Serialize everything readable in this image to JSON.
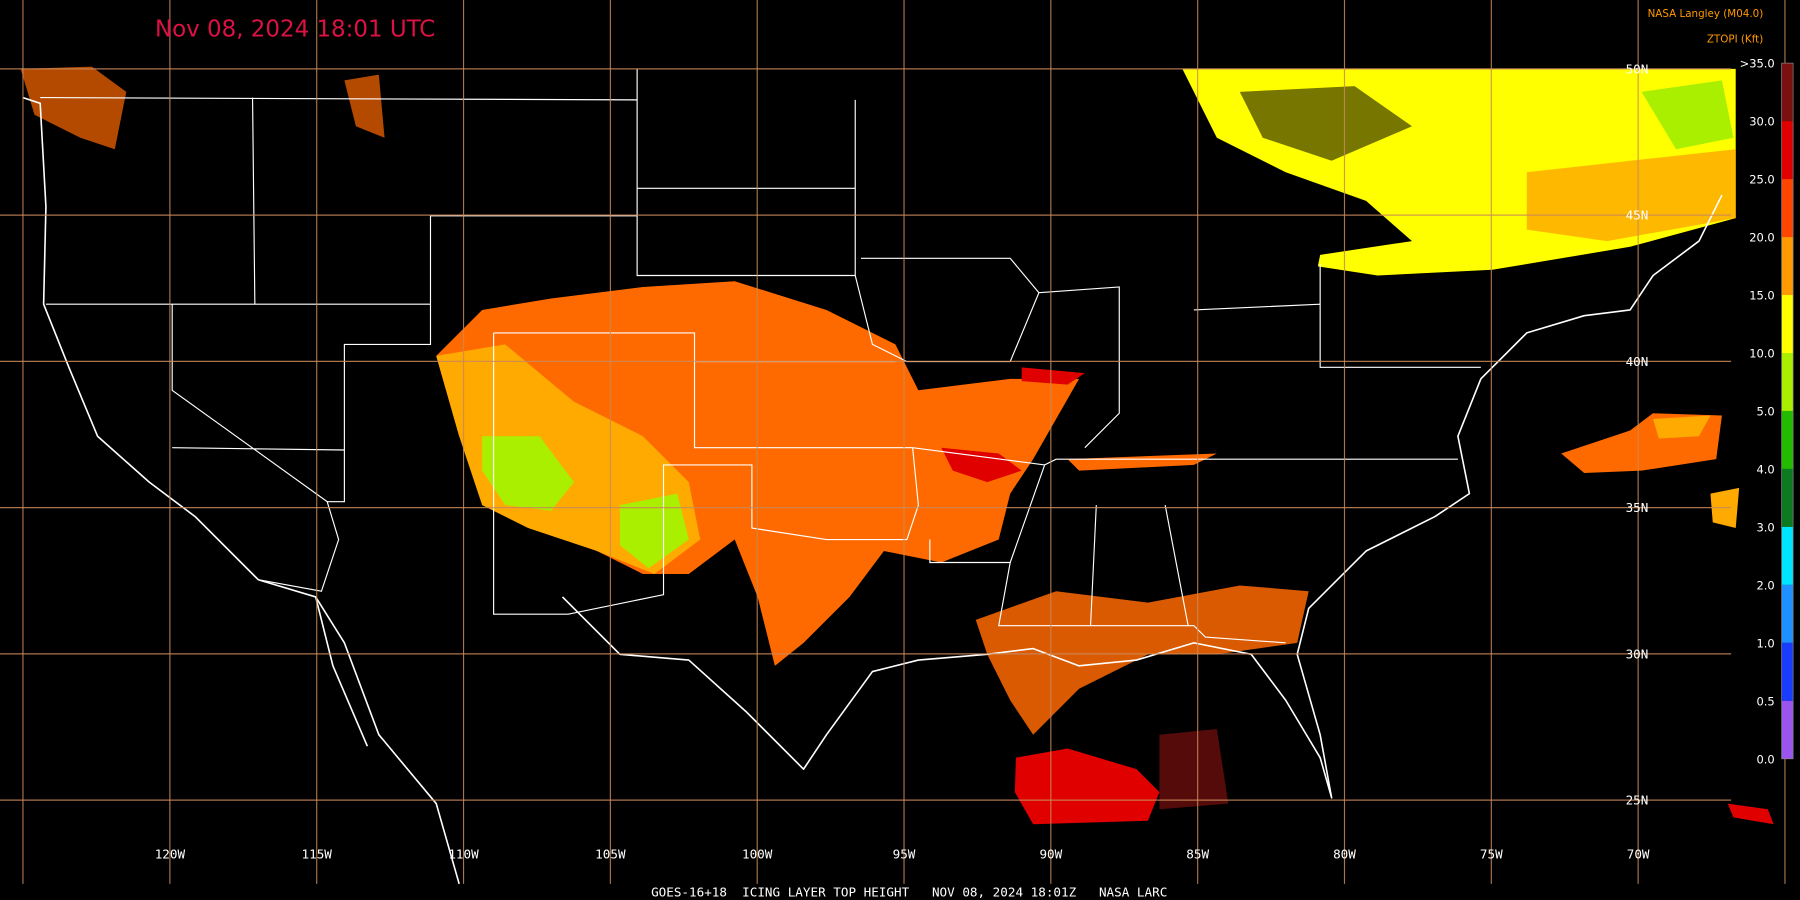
{
  "header": {
    "title": "Nov 08, 2024 18:01 UTC",
    "source": "NASA Langley (M04.0)"
  },
  "legend": {
    "title": "ZTOPI (Kft)",
    "labels": [
      ">35.0",
      "30.0",
      "25.0",
      "20.0",
      "15.0",
      "10.0",
      "5.0",
      "4.0",
      "3.0",
      "2.0",
      "1.0",
      "0.5",
      "0.0"
    ],
    "colors": [
      "#7a1010",
      "#e00000",
      "#ff4500",
      "#ff9a00",
      "#ffff00",
      "#aaee00",
      "#22bb00",
      "#0b7a20",
      "#00e5ff",
      "#1e90ff",
      "#1a3cff",
      "#9955ee"
    ]
  },
  "longitude_labels": [
    "120W",
    "115W",
    "110W",
    "105W",
    "100W",
    "95W",
    "90W",
    "85W",
    "80W",
    "75W",
    "70W"
  ],
  "latitude_labels": [
    "50N",
    "45N",
    "40N",
    "35N",
    "30N",
    "25N"
  ],
  "footer": {
    "caption": "GOES-16+18  ICING LAYER TOP HEIGHT   NOV 08, 2024 18:01Z   NASA LARC"
  }
}
